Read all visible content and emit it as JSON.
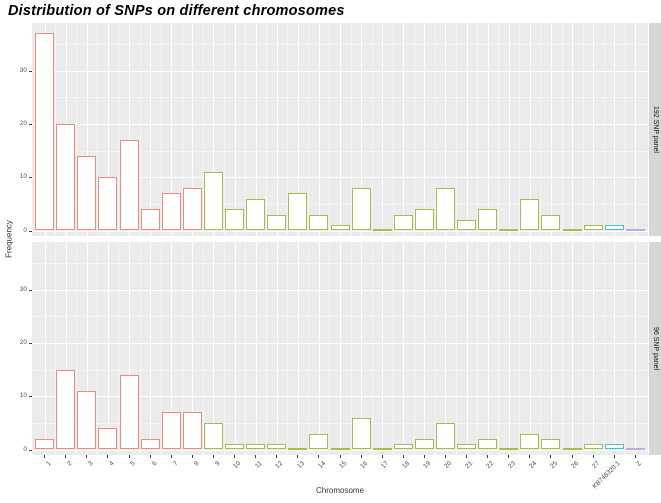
{
  "title": "Distribution of SNPs on different chromosomes",
  "chart_data": {
    "type": "bar",
    "title": "Distribution of SNPs on different chromosomes",
    "xlabel": "Chromosome",
    "ylabel": "Frequency",
    "categories": [
      "1",
      "2",
      "3",
      "4",
      "5",
      "6",
      "7",
      "8",
      "9",
      "10",
      "11",
      "12",
      "13",
      "14",
      "15",
      "16",
      "17",
      "18",
      "19",
      "20",
      "21",
      "22",
      "23",
      "24",
      "25",
      "26",
      "27",
      "KB748320.1",
      "Z"
    ],
    "series": [
      {
        "name": "192 SNP panel",
        "values": [
          37,
          20,
          14,
          10,
          17,
          4,
          7,
          8,
          11,
          4,
          6,
          3,
          7,
          3,
          1,
          8,
          0,
          3,
          4,
          8,
          2,
          4,
          0,
          6,
          3,
          0,
          1,
          1,
          0
        ]
      },
      {
        "name": "96 SNP panel",
        "values": [
          2,
          15,
          11,
          4,
          14,
          2,
          7,
          7,
          5,
          1,
          1,
          1,
          0,
          3,
          0,
          6,
          0,
          1,
          2,
          5,
          1,
          2,
          0,
          3,
          2,
          0,
          1,
          1,
          0
        ]
      }
    ],
    "y_ticks": [
      0,
      10,
      20,
      30
    ],
    "ylim": [
      0,
      38.9
    ],
    "grid": true,
    "legend_position": "none",
    "facet_strip_side": "right",
    "bar_fill": "#ffffff",
    "bar_colors": [
      "#f4897e",
      "#f4897e",
      "#f4897e",
      "#f4897e",
      "#f4897e",
      "#f4897e",
      "#f4897e",
      "#f4897e",
      "#a2bf4e",
      "#a2bf4e",
      "#a2bf4e",
      "#a2bf4e",
      "#a2bf4e",
      "#a2bf4e",
      "#a2bf4e",
      "#a2bf4e",
      "#a2bf4e",
      "#a2bf4e",
      "#a2bf4e",
      "#a2bf4e",
      "#a2bf4e",
      "#a2bf4e",
      "#a2bf4e",
      "#a2bf4e",
      "#a2bf4e",
      "#a2bf4e",
      "#a2bf4e",
      "#3fc6ca",
      "#c5a6ea"
    ]
  },
  "colors": {
    "panel_bg": "#ebebeb",
    "strip_bg": "#d6d6d6",
    "grid": "#ffffff",
    "axis_text": "#4d4d4d",
    "tick_mark": "#3a3a3a",
    "red_group": "#f4897e",
    "green_group": "#a2bf4e",
    "cyan_group": "#3fc6ca",
    "purple_group": "#c5a6ea"
  }
}
